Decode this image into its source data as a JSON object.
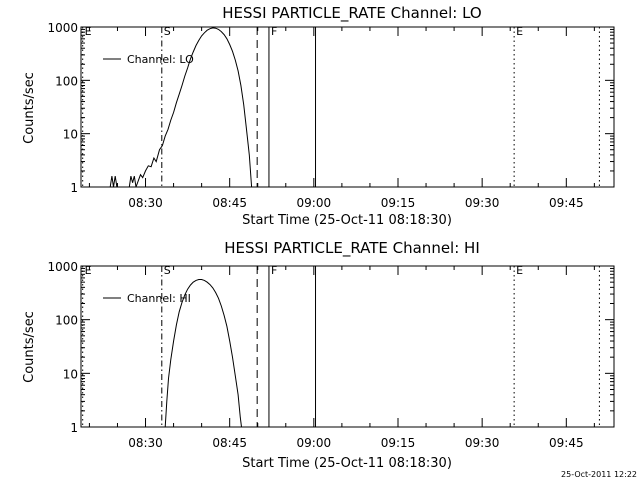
{
  "footer": {
    "timestamp": "25-Oct-2011 12:22"
  },
  "chart_data": [
    {
      "type": "line",
      "title": "HESSI PARTICLE_RATE Channel: LO",
      "xlabel": "Start Time (25-Oct-11 08:18:30)",
      "ylabel": "Counts/sec",
      "x_unit": "minutes after 08:18:30",
      "xlim": [
        0,
        95
      ],
      "ylim": [
        1,
        1000
      ],
      "y_scale": "log",
      "x_ticks": [
        {
          "label": "08:30",
          "value": 11.5
        },
        {
          "label": "08:45",
          "value": 26.5
        },
        {
          "label": "09:00",
          "value": 41.5
        },
        {
          "label": "09:15",
          "value": 56.5
        },
        {
          "label": "09:30",
          "value": 71.5
        },
        {
          "label": "09:45",
          "value": 86.5
        }
      ],
      "y_ticks": [
        {
          "label": "1",
          "value": 1
        },
        {
          "label": "10",
          "value": 10
        },
        {
          "label": "100",
          "value": 100
        },
        {
          "label": "1000",
          "value": 1000
        }
      ],
      "legend": {
        "label": "Channel: LO",
        "position": "top-left"
      },
      "markers": [
        {
          "label": "E",
          "x": 0.3,
          "style": "dotted"
        },
        {
          "label": "S",
          "x": 14.4,
          "style": "dashdot"
        },
        {
          "label": "",
          "x": 31.4,
          "style": "dashed"
        },
        {
          "label": "F",
          "x": 33.5,
          "style": "solid"
        },
        {
          "label": "",
          "x": 41.8,
          "style": "solid"
        },
        {
          "label": "E",
          "x": 77.2,
          "style": "dotted"
        },
        {
          "label": "",
          "x": 92.4,
          "style": "dotted"
        }
      ],
      "series": [
        {
          "points": [
            [
              5.2,
              1
            ],
            [
              5.5,
              1.6
            ],
            [
              5.8,
              1
            ],
            [
              6.1,
              1.6
            ],
            [
              6.4,
              1
            ],
            [
              8.6,
              1
            ],
            [
              8.9,
              1.6
            ],
            [
              9.2,
              1.2
            ],
            [
              9.5,
              1.6
            ],
            [
              9.8,
              1
            ],
            [
              10.2,
              1.3
            ],
            [
              10.6,
              1.7
            ],
            [
              11.0,
              1.5
            ],
            [
              11.5,
              2
            ],
            [
              12.0,
              2.5
            ],
            [
              12.5,
              2.4
            ],
            [
              13.0,
              3.5
            ],
            [
              13.4,
              3
            ],
            [
              14.0,
              5
            ],
            [
              14.5,
              6
            ],
            [
              15.0,
              9
            ],
            [
              15.5,
              12
            ],
            [
              16.0,
              18
            ],
            [
              16.5,
              25
            ],
            [
              17.0,
              38
            ],
            [
              17.5,
              55
            ],
            [
              18.0,
              80
            ],
            [
              18.5,
              120
            ],
            [
              19.0,
              170
            ],
            [
              19.5,
              250
            ],
            [
              20.0,
              340
            ],
            [
              20.5,
              450
            ],
            [
              21.0,
              560
            ],
            [
              21.5,
              680
            ],
            [
              22.0,
              780
            ],
            [
              22.5,
              870
            ],
            [
              23.0,
              930
            ],
            [
              23.5,
              960
            ],
            [
              24.0,
              950
            ],
            [
              24.5,
              900
            ],
            [
              25.0,
              820
            ],
            [
              25.5,
              720
            ],
            [
              26.0,
              600
            ],
            [
              26.5,
              470
            ],
            [
              27.0,
              350
            ],
            [
              27.5,
              240
            ],
            [
              28.0,
              150
            ],
            [
              28.5,
              80
            ],
            [
              29.0,
              35
            ],
            [
              29.5,
              12
            ],
            [
              30.0,
              4
            ],
            [
              30.4,
              1
            ]
          ]
        }
      ]
    },
    {
      "type": "line",
      "title": "HESSI PARTICLE_RATE Channel: HI",
      "xlabel": "Start Time (25-Oct-11 08:18:30)",
      "ylabel": "Counts/sec",
      "x_unit": "minutes after 08:18:30",
      "xlim": [
        0,
        95
      ],
      "ylim": [
        1,
        1000
      ],
      "y_scale": "log",
      "x_ticks": [
        {
          "label": "08:30",
          "value": 11.5
        },
        {
          "label": "08:45",
          "value": 26.5
        },
        {
          "label": "09:00",
          "value": 41.5
        },
        {
          "label": "09:15",
          "value": 56.5
        },
        {
          "label": "09:30",
          "value": 71.5
        },
        {
          "label": "09:45",
          "value": 86.5
        }
      ],
      "y_ticks": [
        {
          "label": "1",
          "value": 1
        },
        {
          "label": "10",
          "value": 10
        },
        {
          "label": "100",
          "value": 100
        },
        {
          "label": "1000",
          "value": 1000
        }
      ],
      "legend": {
        "label": "Channel: HI",
        "position": "top-left"
      },
      "markers": [
        {
          "label": "E",
          "x": 0.3,
          "style": "dotted"
        },
        {
          "label": "S",
          "x": 14.4,
          "style": "dashdot"
        },
        {
          "label": "",
          "x": 31.4,
          "style": "dashed"
        },
        {
          "label": "F",
          "x": 33.5,
          "style": "solid"
        },
        {
          "label": "",
          "x": 41.8,
          "style": "solid"
        },
        {
          "label": "E",
          "x": 77.2,
          "style": "dotted"
        },
        {
          "label": "",
          "x": 92.4,
          "style": "dotted"
        }
      ],
      "series": [
        {
          "points": [
            [
              15.0,
              1
            ],
            [
              15.3,
              3
            ],
            [
              15.6,
              8
            ],
            [
              16.0,
              18
            ],
            [
              16.5,
              40
            ],
            [
              17.0,
              80
            ],
            [
              17.5,
              140
            ],
            [
              18.0,
              210
            ],
            [
              18.5,
              290
            ],
            [
              19.0,
              370
            ],
            [
              19.5,
              440
            ],
            [
              20.0,
              500
            ],
            [
              20.5,
              540
            ],
            [
              21.0,
              560
            ],
            [
              21.5,
              560
            ],
            [
              22.0,
              540
            ],
            [
              22.5,
              500
            ],
            [
              23.0,
              450
            ],
            [
              23.5,
              390
            ],
            [
              24.0,
              320
            ],
            [
              24.5,
              250
            ],
            [
              25.0,
              180
            ],
            [
              25.5,
              120
            ],
            [
              26.0,
              75
            ],
            [
              26.5,
              40
            ],
            [
              27.0,
              20
            ],
            [
              27.5,
              9
            ],
            [
              28.0,
              4
            ],
            [
              28.4,
              1.5
            ],
            [
              28.6,
              1
            ]
          ]
        }
      ]
    }
  ]
}
